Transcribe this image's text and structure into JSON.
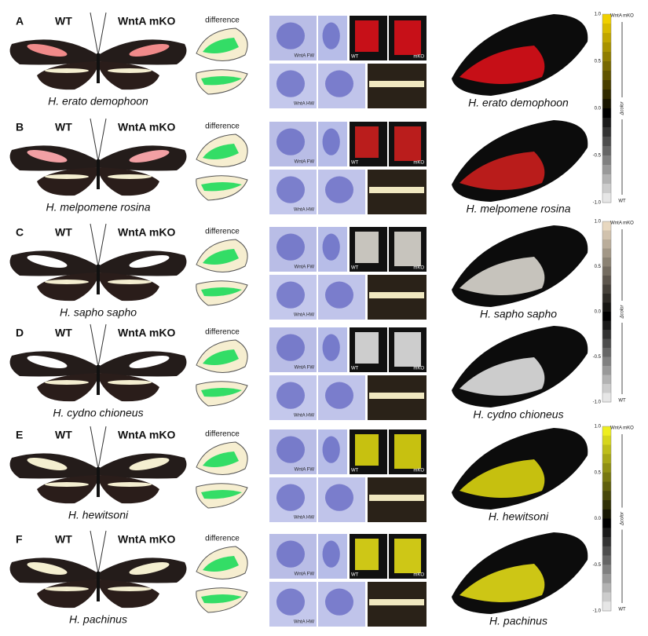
{
  "panels": [
    {
      "letter": "A",
      "wt": "WT",
      "mko": "WntA mKO",
      "difference": "difference",
      "species": "H. erato demophoon",
      "insitu": {
        "fw": "WntA FW",
        "hw": "WntA HW",
        "wt": "WT",
        "mko": "mKO"
      }
    },
    {
      "letter": "B",
      "wt": "WT",
      "mko": "WntA mKO",
      "difference": "difference",
      "species": "H. melpomene rosina",
      "insitu": {
        "fw": "WntA FW",
        "hw": "WntA HW",
        "wt": "WT",
        "mko": "mKO"
      }
    },
    {
      "letter": "C",
      "wt": "WT",
      "mko": "WntA mKO",
      "difference": "difference",
      "species": "H. sapho sapho",
      "insitu": {
        "fw": "WntA FW",
        "hw": "WntA HW",
        "wt": "WT",
        "mko": "mKO"
      }
    },
    {
      "letter": "D",
      "wt": "WT",
      "mko": "WntA mKO",
      "difference": "difference",
      "species": "H. cydno chioneus",
      "insitu": {
        "fw": "WntA FW",
        "hw": "WntA HW",
        "wt": "WT",
        "mko": "mKO"
      }
    },
    {
      "letter": "E",
      "wt": "WT",
      "mko": "WntA mKO",
      "difference": "difference",
      "species": "H. hewitsoni",
      "insitu": {
        "fw": "WntA FW",
        "hw": "WntA HW",
        "wt": "WT",
        "mko": "mKO"
      }
    },
    {
      "letter": "F",
      "wt": "WT",
      "mko": "WntA mKO",
      "difference": "difference",
      "species": "H. pachinus",
      "insitu": {
        "fw": "WntA FW",
        "hw": "WntA HW",
        "wt": "WT",
        "mko": "mKO"
      }
    }
  ],
  "colorbars": [
    {
      "top": "WntA mKO",
      "axis": "Δcolor",
      "bottom": "WT",
      "ticks": [
        "1.0",
        "0.5",
        "0.0",
        "-0.5",
        "-1.0"
      ]
    },
    {
      "top": "WntA mKO",
      "axis": "Δcolor",
      "bottom": "WT",
      "ticks": [
        "1.0",
        "0.5",
        "0.0",
        "-0.5",
        "-1.0"
      ]
    },
    {
      "top": "WntA mKO",
      "axis": "Δcolor",
      "bottom": "WT",
      "ticks": [
        "1.0",
        "0.5",
        "0.0",
        "-0.5",
        "-1.0"
      ]
    }
  ]
}
